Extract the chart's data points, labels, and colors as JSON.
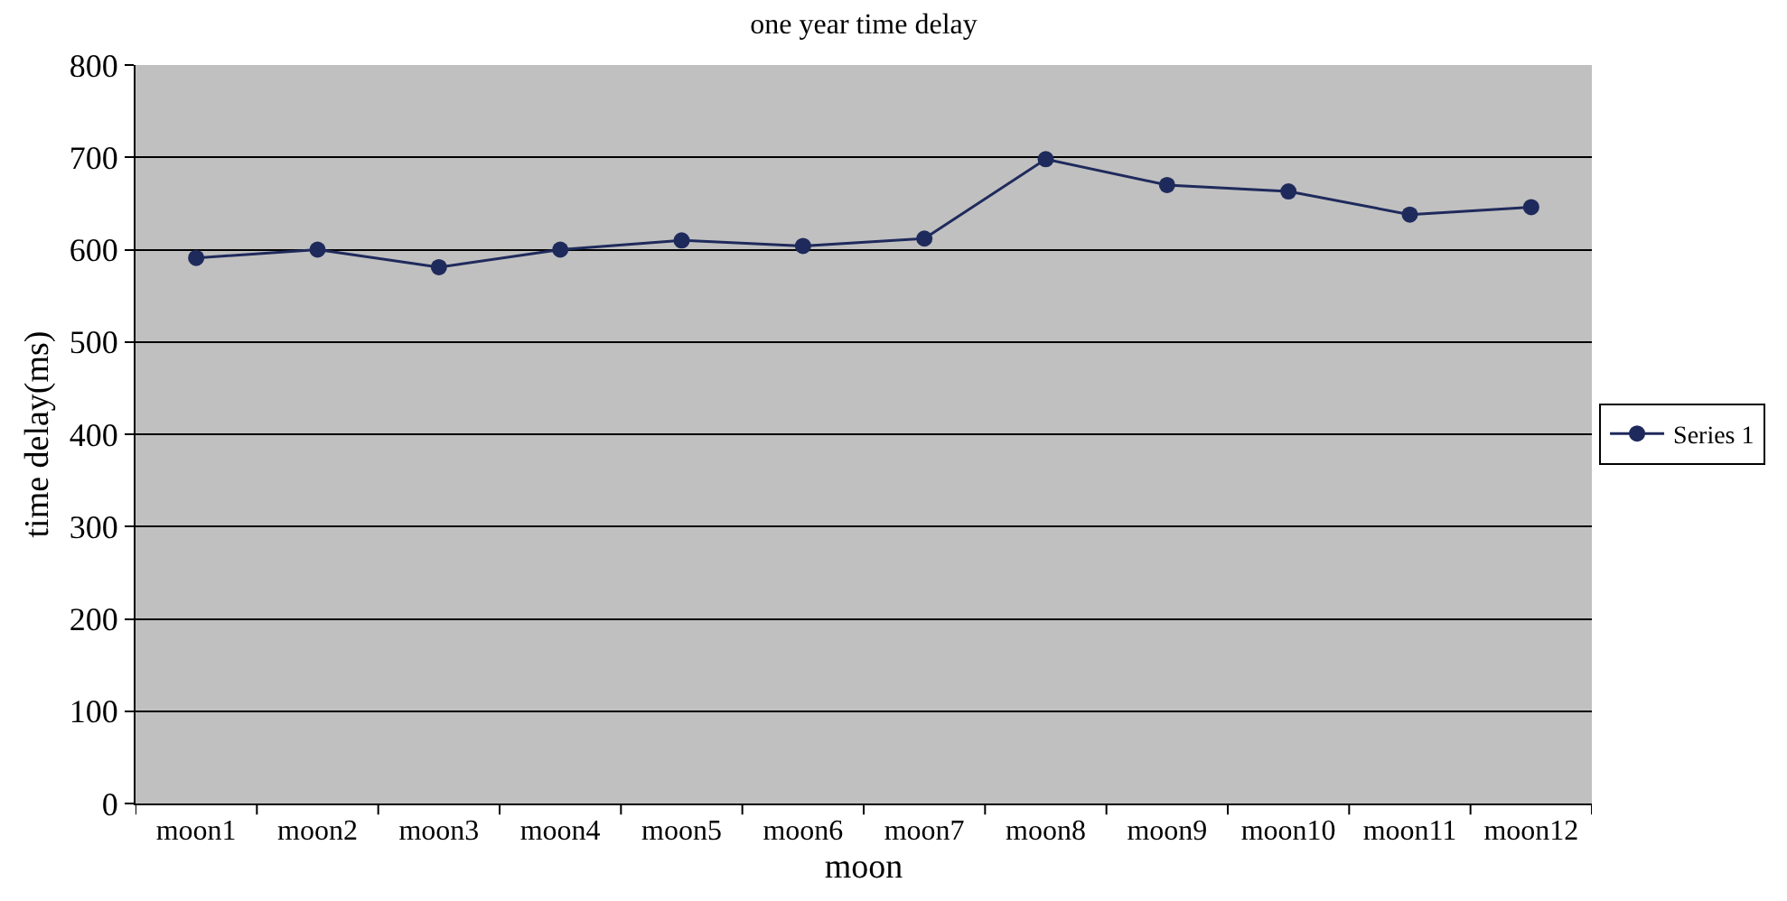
{
  "chart_data": {
    "type": "line",
    "title": "one year time delay",
    "xlabel": "moon",
    "ylabel": "time delay(ms)",
    "categories": [
      "moon1",
      "moon2",
      "moon3",
      "moon4",
      "moon5",
      "moon6",
      "moon7",
      "moon8",
      "moon9",
      "moon10",
      "moon11",
      "moon12"
    ],
    "series": [
      {
        "name": "Series 1",
        "color": "#1f2a5c",
        "values": [
          591,
          600,
          581,
          600,
          610,
          604,
          612,
          698,
          670,
          663,
          638,
          646
        ]
      }
    ],
    "ylim": [
      0,
      800
    ],
    "yticks": [
      0,
      100,
      200,
      300,
      400,
      500,
      600,
      700,
      800
    ],
    "grid": "y",
    "legend": "right",
    "marker": "circle",
    "line_style": "solid"
  }
}
